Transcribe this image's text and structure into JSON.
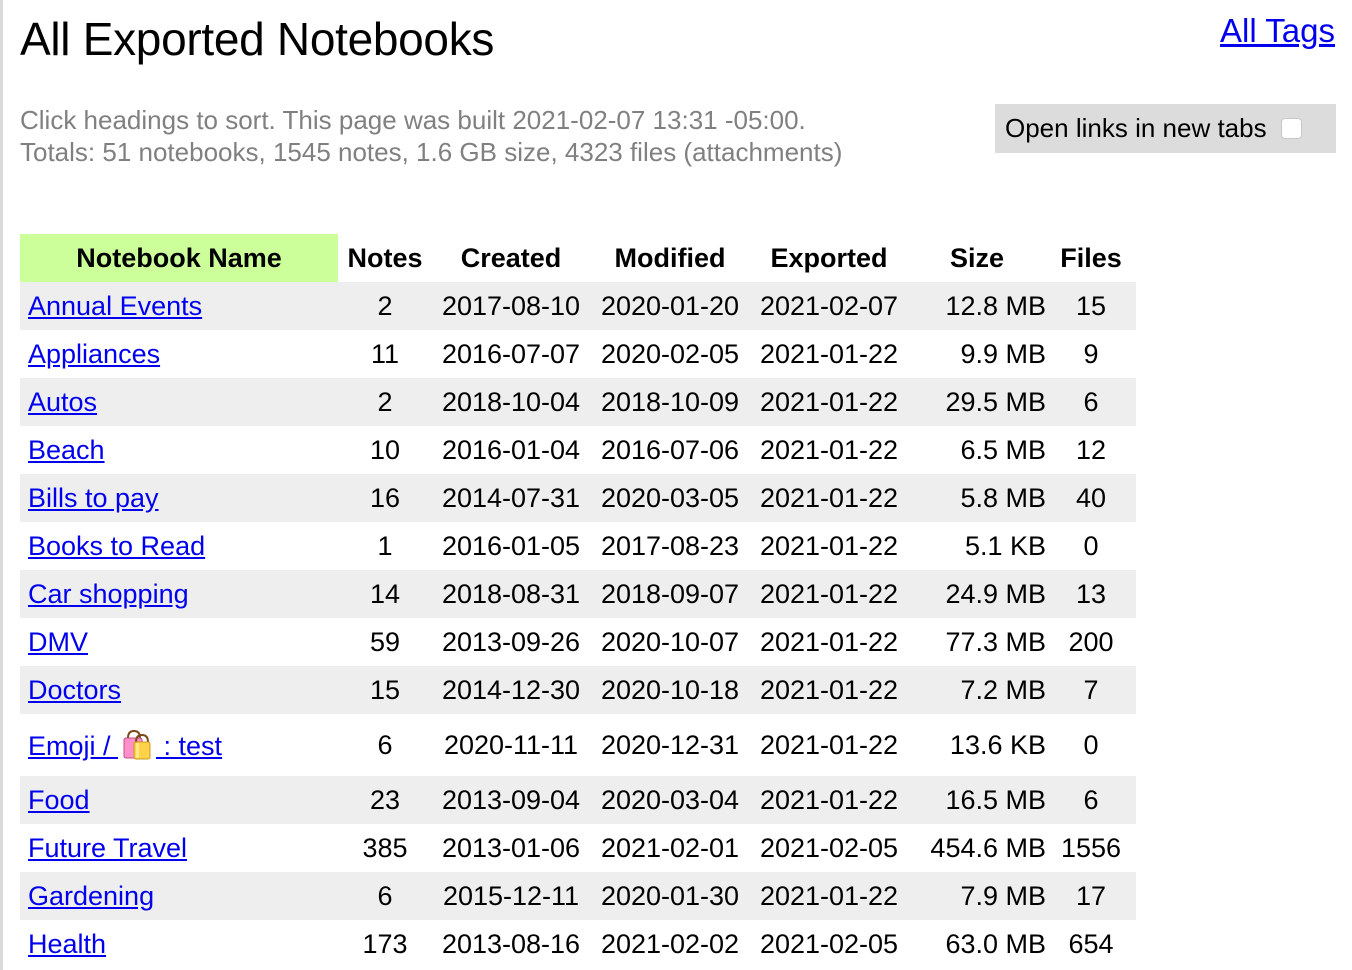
{
  "page": {
    "title": "All Exported Notebooks",
    "all_tags_link": "All Tags",
    "subtitle_line1": "Click headings to sort. This page was built 2021-02-07 13:31 -05:00.",
    "subtitle_line2": "Totals: 51 notebooks, 1545 notes, 1.6 GB size, 4323 files (attachments)",
    "new_tabs_label": "Open links in new tabs",
    "new_tabs_checked": false
  },
  "table": {
    "sorted_column": "Notebook Name",
    "sorted_color": "#ccff99",
    "headers": {
      "name": "Notebook Name",
      "notes": "Notes",
      "created": "Created",
      "modified": "Modified",
      "exported": "Exported",
      "size": "Size",
      "files": "Files"
    },
    "rows": [
      {
        "name": "Annual Events",
        "notes": "2",
        "created": "2017-08-10",
        "modified": "2020-01-20",
        "exported": "2021-02-07",
        "size": "12.8 MB",
        "files": "15"
      },
      {
        "name": "Appliances",
        "notes": "11",
        "created": "2016-07-07",
        "modified": "2020-02-05",
        "exported": "2021-01-22",
        "size": "9.9 MB",
        "files": "9"
      },
      {
        "name": "Autos",
        "notes": "2",
        "created": "2018-10-04",
        "modified": "2018-10-09",
        "exported": "2021-01-22",
        "size": "29.5 MB",
        "files": "6"
      },
      {
        "name": "Beach",
        "notes": "10",
        "created": "2016-01-04",
        "modified": "2016-07-06",
        "exported": "2021-01-22",
        "size": "6.5 MB",
        "files": "12"
      },
      {
        "name": "Bills to pay",
        "notes": "16",
        "created": "2014-07-31",
        "modified": "2020-03-05",
        "exported": "2021-01-22",
        "size": "5.8 MB",
        "files": "40"
      },
      {
        "name": "Books to Read",
        "notes": "1",
        "created": "2016-01-05",
        "modified": "2017-08-23",
        "exported": "2021-01-22",
        "size": "5.1 KB",
        "files": "0"
      },
      {
        "name": "Car shopping",
        "notes": "14",
        "created": "2018-08-31",
        "modified": "2018-09-07",
        "exported": "2021-01-22",
        "size": "24.9 MB",
        "files": "13"
      },
      {
        "name": "DMV",
        "notes": "59",
        "created": "2013-09-26",
        "modified": "2020-10-07",
        "exported": "2021-01-22",
        "size": "77.3 MB",
        "files": "200"
      },
      {
        "name": "Doctors",
        "notes": "15",
        "created": "2014-12-30",
        "modified": "2020-10-18",
        "exported": "2021-01-22",
        "size": "7.2 MB",
        "files": "7"
      },
      {
        "name_prefix": "Emoji / ",
        "name_icon": "shopping-bags-icon",
        "name_suffix": " : test",
        "notes": "6",
        "created": "2020-11-11",
        "modified": "2020-12-31",
        "exported": "2021-01-22",
        "size": "13.6 KB",
        "files": "0"
      },
      {
        "name": "Food",
        "notes": "23",
        "created": "2013-09-04",
        "modified": "2020-03-04",
        "exported": "2021-01-22",
        "size": "16.5 MB",
        "files": "6"
      },
      {
        "name": "Future Travel",
        "notes": "385",
        "created": "2013-01-06",
        "modified": "2021-02-01",
        "exported": "2021-02-05",
        "size": "454.6 MB",
        "files": "1556"
      },
      {
        "name": "Gardening",
        "notes": "6",
        "created": "2015-12-11",
        "modified": "2020-01-30",
        "exported": "2021-01-22",
        "size": "7.9 MB",
        "files": "17"
      },
      {
        "name": "Health",
        "notes": "173",
        "created": "2013-08-16",
        "modified": "2021-02-02",
        "exported": "2021-02-05",
        "size": "63.0 MB",
        "files": "654"
      }
    ]
  },
  "colors": {
    "link": "#0000ee",
    "stripe": "#eeeeee",
    "subtitle": "#808080",
    "toggle_bg": "#dcdcdc"
  }
}
